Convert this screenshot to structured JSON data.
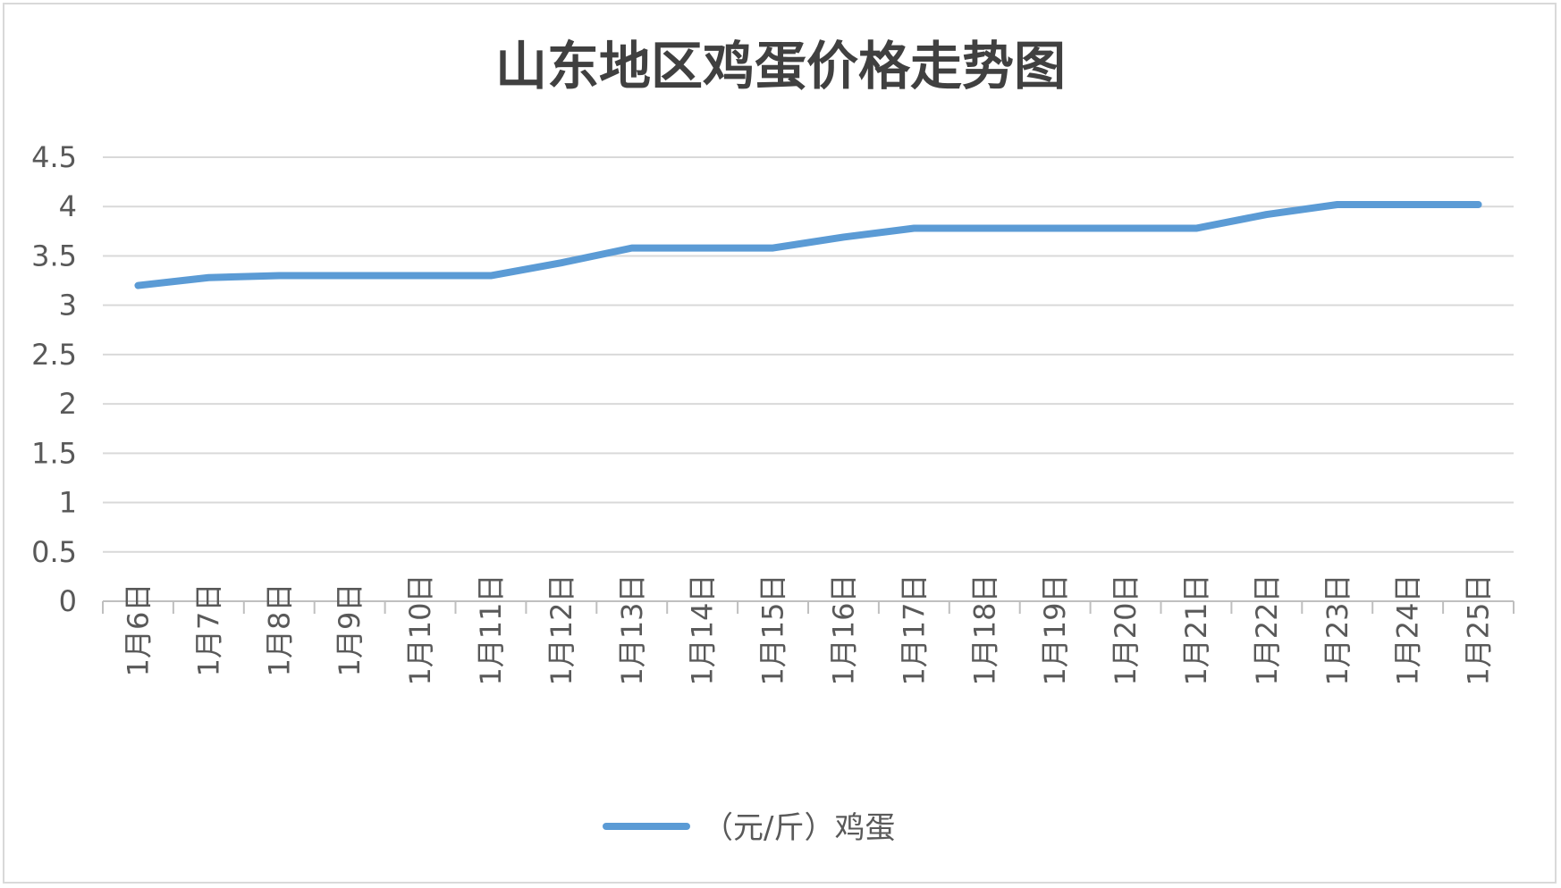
{
  "chart_data": {
    "type": "line",
    "title": "山东地区鸡蛋价格走势图",
    "xlabel": "",
    "ylabel": "",
    "ylim": [
      0,
      4.5
    ],
    "y_ticks": [
      "0",
      "0.5",
      "1",
      "1.5",
      "2",
      "2.5",
      "3",
      "3.5",
      "4",
      "4.5"
    ],
    "categories": [
      "1月6日",
      "1月7日",
      "1月8日",
      "1月9日",
      "1月10日",
      "1月11日",
      "1月12日",
      "1月13日",
      "1月14日",
      "1月15日",
      "1月16日",
      "1月17日",
      "1月18日",
      "1月19日",
      "1月20日",
      "1月21日",
      "1月22日",
      "1月23日",
      "1月24日",
      "1月25日"
    ],
    "series": [
      {
        "name": "（元/斤）鸡蛋",
        "color": "#5b9bd5",
        "values": [
          3.2,
          3.28,
          3.3,
          3.3,
          3.3,
          3.3,
          3.43,
          3.58,
          3.58,
          3.58,
          3.69,
          3.78,
          3.78,
          3.78,
          3.78,
          3.78,
          3.92,
          4.02,
          4.02,
          4.02
        ]
      }
    ],
    "grid": true,
    "legend": "bottom-center",
    "colors": {
      "gridline": "#d9d9d9",
      "axis": "#bfbfbf",
      "text": "#595959",
      "title": "#404040"
    }
  }
}
